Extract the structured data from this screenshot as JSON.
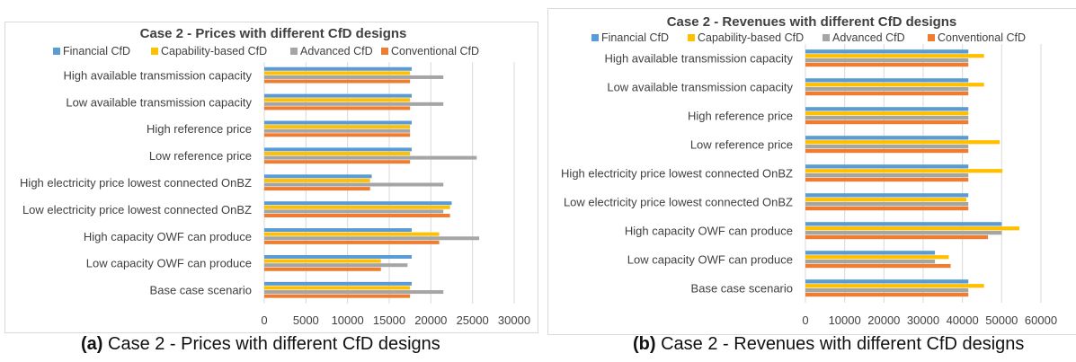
{
  "colors": {
    "financial": "#5b9bd5",
    "capability": "#ffc000",
    "advanced": "#a5a5a5",
    "conventional": "#ed7d31",
    "grid": "#d9d9d9",
    "text": "#404040"
  },
  "captions": {
    "a_label": "(a)",
    "a_text": " Case 2 - Prices with different CfD designs",
    "b_label": "(b)",
    "b_text": " Case 2 - Revenues with different CfD designs"
  },
  "chart_data": [
    {
      "type": "bar",
      "orientation": "horizontal",
      "title": "Case 2 - Prices with different CfD designs",
      "legend_position": "top",
      "grid": true,
      "categories": [
        "High available transmission capacity",
        "Low available transmission capacity",
        "High reference price",
        "Low reference price",
        "High electricity price lowest connected OnBZ",
        "Low electricity price lowest connected OnBZ",
        "High capacity OWF can produce",
        "Low capacity OWF can produce",
        "Base case scenario"
      ],
      "xlim": [
        0,
        30000
      ],
      "xticks": [
        "0",
        "5000",
        "10000",
        "15000",
        "20000",
        "25000",
        "30000"
      ],
      "series": [
        {
          "name": "Financial CfD",
          "key": "financial",
          "values": [
            17700,
            17700,
            17700,
            17700,
            12900,
            22500,
            17700,
            17700,
            17700
          ]
        },
        {
          "name": "Capability-based CfD",
          "key": "capability",
          "values": [
            17500,
            17500,
            17500,
            17500,
            12700,
            22300,
            21000,
            14000,
            17500
          ]
        },
        {
          "name": "Advanced CfD",
          "key": "advanced",
          "values": [
            21500,
            21500,
            17500,
            25500,
            21500,
            21500,
            25800,
            17200,
            21500
          ]
        },
        {
          "name": "Conventional CfD",
          "key": "conventional",
          "values": [
            17500,
            17500,
            17500,
            17500,
            12700,
            22300,
            21000,
            14000,
            17500
          ]
        }
      ]
    },
    {
      "type": "bar",
      "orientation": "horizontal",
      "title": "Case 2 - Revenues with different CfD designs",
      "legend_position": "top",
      "grid": true,
      "categories": [
        "High available transmission capacity",
        "Low available transmission capacity",
        "High reference price",
        "Low reference price",
        "High electricity price lowest connected OnBZ",
        "Low electricity price lowest connected OnBZ",
        "High capacity OWF can produce",
        "Low capacity OWF can produce",
        "Base case scenario"
      ],
      "xlim": [
        0,
        60000
      ],
      "xticks": [
        "0",
        "10000",
        "20000",
        "30000",
        "40000",
        "50000",
        "60000"
      ],
      "series": [
        {
          "name": "Financial CfD",
          "key": "financial",
          "values": [
            41500,
            41500,
            41500,
            41500,
            41500,
            41500,
            50000,
            33000,
            41500
          ]
        },
        {
          "name": "Capability-based CfD",
          "key": "capability",
          "values": [
            45500,
            45500,
            41500,
            49500,
            50200,
            41000,
            54500,
            36500,
            45500
          ]
        },
        {
          "name": "Advanced CfD",
          "key": "advanced",
          "values": [
            41500,
            41500,
            41500,
            41500,
            41500,
            41500,
            50000,
            33000,
            41500
          ]
        },
        {
          "name": "Conventional CfD",
          "key": "conventional",
          "values": [
            41500,
            41500,
            41500,
            41500,
            41500,
            41500,
            46500,
            37000,
            41500
          ]
        }
      ]
    }
  ]
}
